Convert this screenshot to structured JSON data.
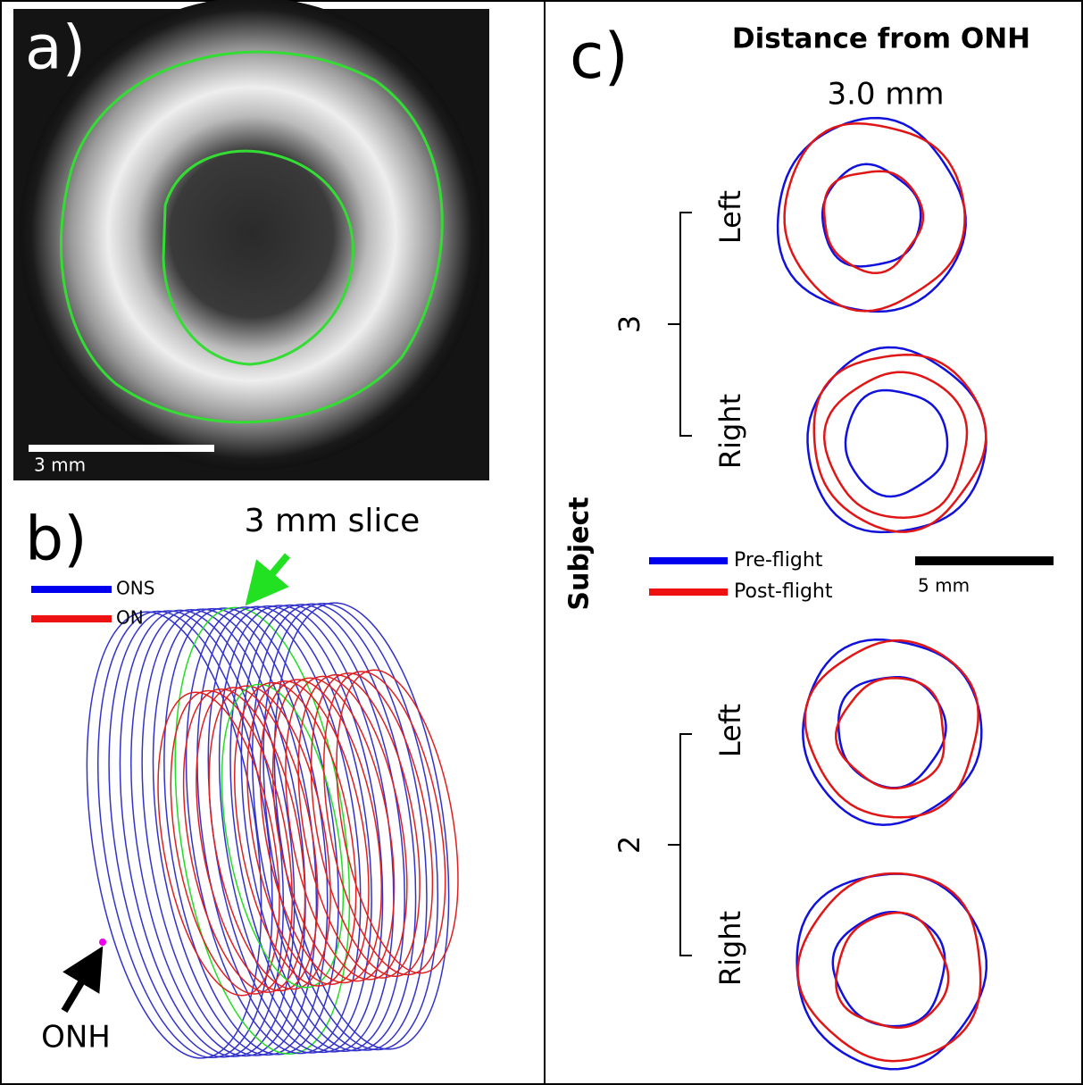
{
  "panel_a": {
    "label": "a)",
    "scale_bar": "3 mm"
  },
  "panel_b": {
    "label": "b)",
    "slice_annotation": "3 mm slice",
    "legend": [
      "ONS",
      "ON"
    ],
    "point_annotation": "ONH"
  },
  "panel_c": {
    "label": "c)",
    "title": "Distance from ONH",
    "distance": "3.0 mm",
    "y_label": "Subject",
    "subjects": [
      {
        "id": "3",
        "eyes": [
          "Left",
          "Right"
        ]
      },
      {
        "id": "2",
        "eyes": [
          "Left",
          "Right"
        ]
      }
    ],
    "legend": [
      "Pre-flight",
      "Post-flight"
    ],
    "scale_bar": "5 mm"
  }
}
